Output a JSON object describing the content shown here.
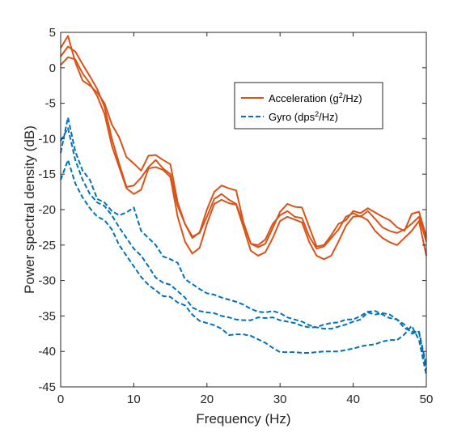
{
  "chart_data": {
    "type": "line",
    "xlabel": "Frequency (Hz)",
    "ylabel": "Power spectral density (dB)",
    "xlim": [
      0,
      50
    ],
    "ylim": [
      -45,
      5
    ],
    "xticks": [
      0,
      10,
      20,
      30,
      40,
      50
    ],
    "yticks": [
      5,
      0,
      -5,
      -10,
      -15,
      -20,
      -25,
      -30,
      -35,
      -40,
      -45
    ],
    "grid": false,
    "legend_position": "top-right",
    "legend": [
      {
        "group": "acc",
        "text": "Acceleration (g",
        "sup": "2",
        "tail": "/Hz)"
      },
      {
        "group": "gyro",
        "text": "Gyro (dps",
        "sup": "2",
        "tail": "/Hz)"
      }
    ],
    "colors": {
      "acc": "#d95319",
      "gyro": "#0072bd",
      "axis": "#262626"
    },
    "series": [
      {
        "group": "acc",
        "style": "solid",
        "x": [
          0,
          1,
          2,
          3,
          4,
          5,
          6,
          7,
          8,
          9,
          10,
          11,
          12,
          13,
          14,
          15,
          16,
          17,
          18,
          19,
          20,
          21,
          22,
          23,
          24,
          25,
          26,
          27,
          28,
          29,
          30,
          31,
          32,
          33,
          34,
          35,
          36,
          37,
          38,
          39,
          40,
          41,
          42,
          43,
          44,
          45,
          46,
          47,
          48,
          49,
          50
        ],
        "y": [
          2.8,
          4.5,
          0.8,
          -1.8,
          -2.5,
          -3.5,
          -5.0,
          -8.0,
          -9.8,
          -12.6,
          -13.5,
          -14.5,
          -12.4,
          -12.3,
          -13.0,
          -13.6,
          -19.0,
          -22.0,
          -24.0,
          -23.2,
          -20.0,
          -17.5,
          -16.6,
          -17.0,
          -17.3,
          -21.8,
          -24.8,
          -25.3,
          -24.8,
          -22.6,
          -20.3,
          -19.2,
          -19.6,
          -19.7,
          -22.5,
          -25.2,
          -25.0,
          -23.6,
          -22.0,
          -21.5,
          -20.2,
          -20.5,
          -19.8,
          -20.4,
          -21.0,
          -21.5,
          -22.5,
          -23.0,
          -20.6,
          -20.3,
          -23.8
        ]
      },
      {
        "group": "acc",
        "style": "solid",
        "x": [
          0,
          1,
          2,
          3,
          4,
          5,
          6,
          7,
          8,
          9,
          10,
          11,
          12,
          13,
          14,
          15,
          16,
          17,
          18,
          19,
          20,
          21,
          22,
          23,
          24,
          25,
          26,
          27,
          28,
          29,
          30,
          31,
          32,
          33,
          34,
          35,
          36,
          37,
          38,
          39,
          40,
          41,
          42,
          43,
          44,
          45,
          46,
          47,
          48,
          49,
          50
        ],
        "y": [
          1.6,
          3.0,
          2.3,
          0.5,
          -1.2,
          -3.0,
          -5.5,
          -10.0,
          -13.5,
          -16.8,
          -16.6,
          -15.5,
          -14.0,
          -13.0,
          -14.2,
          -15.0,
          -19.5,
          -22.0,
          -23.8,
          -23.3,
          -21.0,
          -18.5,
          -17.8,
          -18.6,
          -19.2,
          -22.0,
          -24.8,
          -25.0,
          -24.2,
          -22.0,
          -20.8,
          -20.2,
          -21.0,
          -21.2,
          -23.8,
          -25.5,
          -25.2,
          -24.0,
          -22.8,
          -21.0,
          -20.5,
          -21.0,
          -20.2,
          -21.3,
          -22.5,
          -23.0,
          -23.3,
          -22.8,
          -22.0,
          -21.0,
          -24.5
        ]
      },
      {
        "group": "acc",
        "style": "solid",
        "x": [
          0,
          1,
          2,
          3,
          4,
          5,
          6,
          7,
          8,
          9,
          10,
          11,
          12,
          13,
          14,
          15,
          16,
          17,
          18,
          19,
          20,
          21,
          22,
          23,
          24,
          25,
          26,
          27,
          28,
          29,
          30,
          31,
          32,
          33,
          34,
          35,
          36,
          37,
          38,
          39,
          40,
          41,
          42,
          43,
          44,
          45,
          46,
          47,
          48,
          49,
          50
        ],
        "y": [
          0.4,
          1.5,
          1.2,
          -0.8,
          -2.2,
          -4.0,
          -6.5,
          -11.0,
          -14.0,
          -17.0,
          -17.8,
          -17.2,
          -14.2,
          -14.0,
          -14.4,
          -15.4,
          -21.0,
          -24.5,
          -26.2,
          -25.4,
          -22.0,
          -19.2,
          -18.6,
          -19.1,
          -19.3,
          -22.5,
          -25.8,
          -26.5,
          -26.0,
          -24.0,
          -21.6,
          -21.0,
          -21.4,
          -21.8,
          -24.6,
          -26.5,
          -27.0,
          -26.5,
          -24.5,
          -22.3,
          -21.0,
          -20.9,
          -21.5,
          -23.0,
          -24.0,
          -24.6,
          -25.0,
          -24.0,
          -23.0,
          -21.6,
          -26.5
        ]
      },
      {
        "group": "gyro",
        "style": "dashed",
        "x": [
          0,
          1,
          2,
          3,
          4,
          5,
          6,
          7,
          8,
          9,
          10,
          11,
          12,
          13,
          14,
          15,
          16,
          17,
          18,
          19,
          20,
          21,
          22,
          23,
          24,
          25,
          26,
          27,
          28,
          29,
          30,
          31,
          32,
          33,
          34,
          35,
          36,
          37,
          38,
          39,
          40,
          41,
          42,
          43,
          44,
          45,
          46,
          47,
          48,
          49,
          50
        ],
        "y": [
          -12.0,
          -7.0,
          -11.8,
          -14.5,
          -15.8,
          -18.5,
          -19.0,
          -20.2,
          -20.8,
          -20.4,
          -19.7,
          -23.0,
          -24.0,
          -25.0,
          -26.6,
          -27.0,
          -27.5,
          -29.8,
          -30.5,
          -31.2,
          -31.8,
          -32.0,
          -32.4,
          -32.7,
          -33.0,
          -33.4,
          -34.0,
          -34.4,
          -34.5,
          -34.3,
          -34.6,
          -35.2,
          -35.5,
          -35.8,
          -36.3,
          -36.6,
          -36.8,
          -36.8,
          -36.5,
          -36.2,
          -35.8,
          -35.5,
          -34.5,
          -34.8,
          -34.6,
          -34.8,
          -35.5,
          -36.2,
          -37.5,
          -37.2,
          -42.0
        ]
      },
      {
        "group": "gyro",
        "style": "dashed",
        "x": [
          0,
          1,
          2,
          3,
          4,
          5,
          6,
          7,
          8,
          9,
          10,
          11,
          12,
          13,
          14,
          15,
          16,
          17,
          18,
          19,
          20,
          21,
          22,
          23,
          24,
          25,
          26,
          27,
          28,
          29,
          30,
          31,
          32,
          33,
          34,
          35,
          36,
          37,
          38,
          39,
          40,
          41,
          42,
          43,
          44,
          45,
          46,
          47,
          48,
          49,
          50
        ],
        "y": [
          -10.3,
          -8.5,
          -13.0,
          -15.8,
          -17.8,
          -19.0,
          -19.5,
          -20.8,
          -22.5,
          -24.0,
          -25.5,
          -26.5,
          -28.0,
          -29.6,
          -30.3,
          -30.6,
          -31.5,
          -32.4,
          -33.8,
          -34.3,
          -34.5,
          -34.6,
          -35.0,
          -35.2,
          -35.5,
          -35.6,
          -35.6,
          -35.2,
          -35.3,
          -35.2,
          -35.6,
          -35.8,
          -36.0,
          -36.4,
          -36.6,
          -36.6,
          -36.2,
          -36.0,
          -35.9,
          -35.5,
          -35.5,
          -35.0,
          -34.4,
          -34.3,
          -34.8,
          -35.3,
          -35.5,
          -36.7,
          -37.2,
          -37.3,
          -42.5
        ]
      },
      {
        "group": "gyro",
        "style": "dashed",
        "x": [
          0,
          1,
          2,
          3,
          4,
          5,
          6,
          7,
          8,
          9,
          10,
          11,
          12,
          13,
          14,
          15,
          16,
          17,
          18,
          19,
          20,
          21,
          22,
          23,
          24,
          25,
          26,
          27,
          28,
          29,
          30,
          31,
          32,
          33,
          34,
          35,
          36,
          37,
          38,
          39,
          40,
          41,
          42,
          43,
          44,
          45,
          46,
          47,
          48,
          49,
          50
        ],
        "y": [
          -15.8,
          -13.0,
          -16.3,
          -18.3,
          -19.8,
          -21.0,
          -21.5,
          -22.8,
          -25.0,
          -26.5,
          -28.0,
          -29.5,
          -30.6,
          -31.4,
          -32.2,
          -32.3,
          -33.1,
          -33.5,
          -34.8,
          -35.7,
          -36.0,
          -36.3,
          -36.8,
          -37.7,
          -37.6,
          -37.6,
          -37.8,
          -38.3,
          -38.8,
          -39.5,
          -40.1,
          -40.1,
          -40.1,
          -40.2,
          -40.2,
          -40.1,
          -40.0,
          -40.0,
          -40.0,
          -39.8,
          -39.6,
          -39.3,
          -39.1,
          -39.0,
          -38.6,
          -38.4,
          -38.4,
          -37.6,
          -36.4,
          -38.4,
          -43.3
        ]
      }
    ]
  }
}
